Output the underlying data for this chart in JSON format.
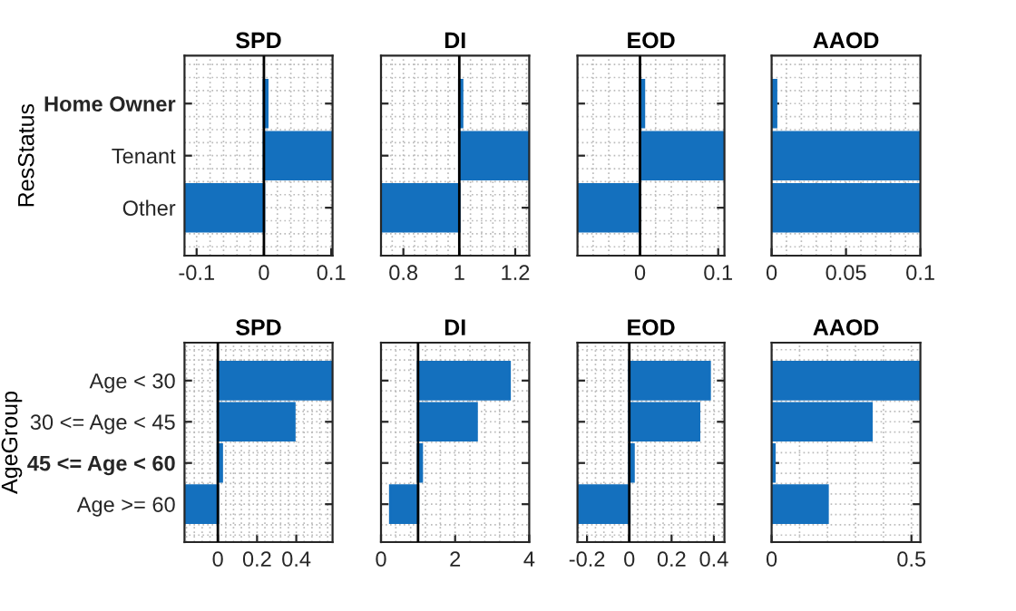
{
  "chart_data": [
    {
      "type": "bar",
      "orientation": "horizontal",
      "title": "SPD",
      "ylabel": "ResStatus",
      "categories": [
        "Home Owner",
        "Tenant",
        "Other"
      ],
      "values": [
        0.005,
        0.102,
        -0.118
      ],
      "color": "#1470be",
      "xlim": [
        -0.118,
        0.102
      ],
      "xticks": [
        -0.1,
        0,
        0.1
      ],
      "grid": true,
      "ref_lines": [
        {
          "axis": "x",
          "value": 0,
          "color": "#000000"
        }
      ]
    },
    {
      "type": "bar",
      "orientation": "horizontal",
      "title": "DI",
      "categories": [
        null,
        null,
        null
      ],
      "base": [
        1,
        1,
        1
      ],
      "values": [
        0.01,
        0.25,
        -0.28
      ],
      "color": "#1470be",
      "xlim": [
        0.72,
        1.25
      ],
      "xticks": [
        0.8,
        1,
        1.2
      ],
      "grid": true,
      "tick_labels": "x",
      "ref_lines": [
        {
          "axis": "x",
          "value": 1,
          "color": "#000000"
        }
      ]
    },
    {
      "type": "bar",
      "orientation": "horizontal",
      "title": "EOD",
      "categories": [
        null,
        null,
        null
      ],
      "values": [
        0.005,
        0.108,
        -0.08
      ],
      "color": "#1470be",
      "xlim": [
        -0.08,
        0.108
      ],
      "xticks": [
        0,
        0.1
      ],
      "grid": true,
      "tick_labels": "x",
      "ref_lines": [
        {
          "axis": "x",
          "value": 0,
          "color": "#000000"
        }
      ]
    },
    {
      "type": "bar",
      "orientation": "horizontal",
      "title": "AAOD",
      "categories": [
        null,
        null,
        null
      ],
      "values": [
        0.003,
        0.1,
        0.1
      ],
      "color": "#1470be",
      "xlim": [
        0,
        0.1
      ],
      "xticks": [
        0,
        0.05,
        0.1
      ],
      "grid": true,
      "tick_labels": "x"
    },
    {
      "type": "bar",
      "orientation": "horizontal",
      "title": "SPD",
      "ylabel": "AgeGroup",
      "categories": [
        "Age < 30",
        "30 <= Age < 45",
        "45 <= Age < 60",
        "Age >= 60"
      ],
      "values": [
        0.58,
        0.39,
        0.02,
        -0.17
      ],
      "color": "#1470be",
      "xlim": [
        -0.17,
        0.585
      ],
      "xticks": [
        0,
        0.2,
        0.4
      ],
      "grid": true,
      "ref_lines": [
        {
          "axis": "x",
          "value": 0,
          "color": "#000000"
        }
      ]
    },
    {
      "type": "bar",
      "orientation": "horizontal",
      "title": "DI",
      "categories": [
        null,
        null,
        null,
        null
      ],
      "base": [
        1,
        1,
        1,
        1
      ],
      "values": [
        2.47,
        1.58,
        0.1,
        -0.75
      ],
      "color": "#1470be",
      "xlim": [
        0,
        4
      ],
      "xticks": [
        0,
        2,
        4
      ],
      "grid": true,
      "tick_labels": "x",
      "ref_lines": [
        {
          "axis": "x",
          "value": 1,
          "color": "#000000"
        }
      ]
    },
    {
      "type": "bar",
      "orientation": "horizontal",
      "title": "EOD",
      "categories": [
        null,
        null,
        null,
        null
      ],
      "values": [
        0.38,
        0.33,
        0.02,
        -0.24
      ],
      "color": "#1470be",
      "xlim": [
        -0.245,
        0.45
      ],
      "xticks": [
        -0.2,
        0,
        0.2,
        0.4
      ],
      "grid": true,
      "tick_labels": "x",
      "ref_lines": [
        {
          "axis": "x",
          "value": 0,
          "color": "#000000"
        }
      ]
    },
    {
      "type": "bar",
      "orientation": "horizontal",
      "title": "AAOD",
      "categories": [
        null,
        null,
        null,
        null
      ],
      "values": [
        0.53,
        0.357,
        0.01,
        0.2
      ],
      "color": "#1470be",
      "xlim": [
        0,
        0.532
      ],
      "xticks": [
        0,
        0.5
      ],
      "grid": true,
      "tick_labels": "x"
    }
  ]
}
